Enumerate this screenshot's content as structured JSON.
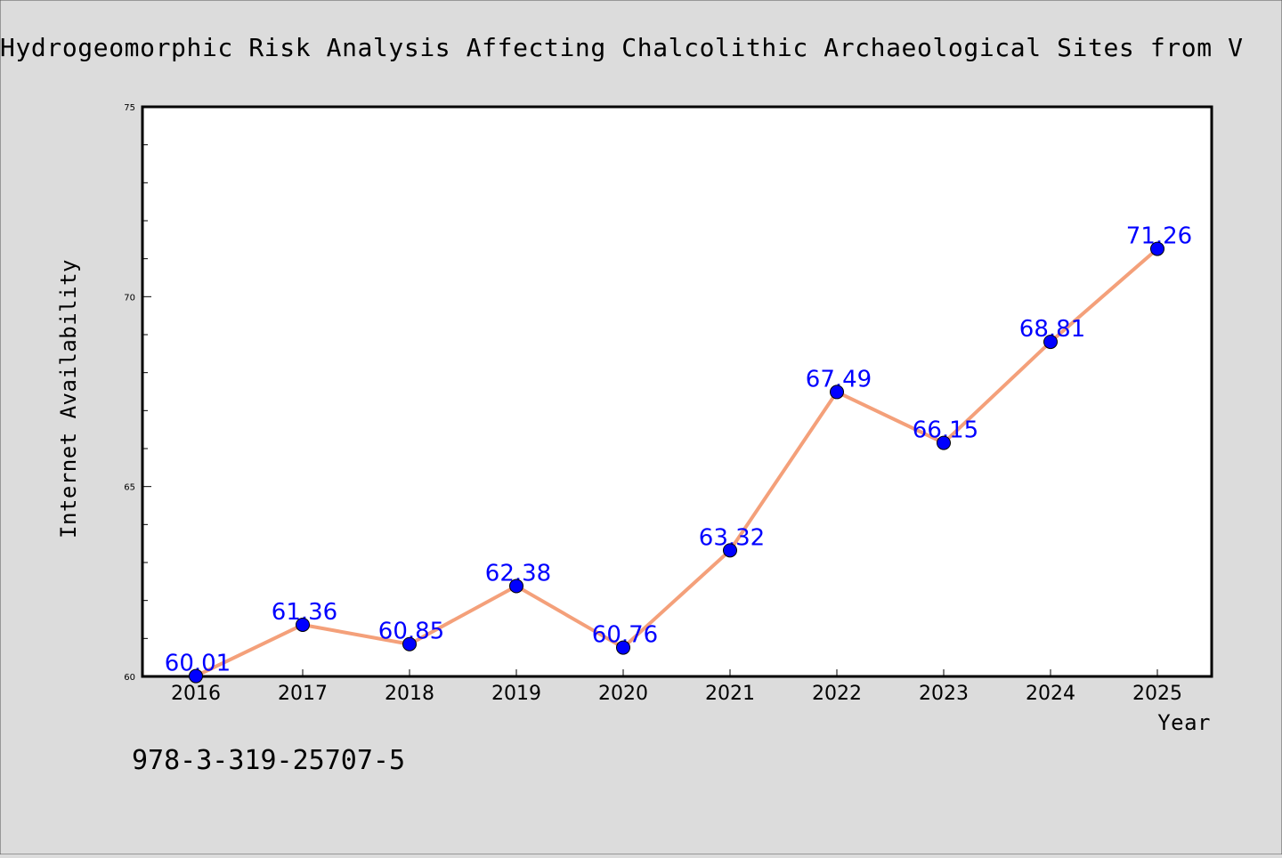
{
  "chart_data": {
    "type": "line",
    "title": "Hydrogeomorphic Risk Analysis Affecting Chalcolithic Archaeological Sites from V",
    "xlabel": "Year",
    "ylabel": "Internet Availability",
    "categories": [
      "2016",
      "2017",
      "2018",
      "2019",
      "2020",
      "2021",
      "2022",
      "2023",
      "2024",
      "2025"
    ],
    "series": [
      {
        "values": [
          60.01,
          61.36,
          60.85,
          62.38,
          60.76,
          63.32,
          67.49,
          66.15,
          68.81,
          71.26
        ],
        "data_labels": [
          "60.01",
          "61.36",
          "60.85",
          "62.38",
          "60.76",
          "63.32",
          "67.49",
          "66.15",
          "68.81",
          "71.26"
        ],
        "line_color": "#f4a07a",
        "marker_color": "#0000ff",
        "label_color": "#0000ff"
      }
    ],
    "ylim": [
      60,
      75
    ],
    "yticks": [
      60,
      65,
      70,
      75
    ],
    "ytick_labels": [
      "60",
      "65",
      "70",
      "75"
    ],
    "grid": false,
    "legend": "none"
  },
  "footer": {
    "isbn": "978-3-319-25707-5"
  }
}
